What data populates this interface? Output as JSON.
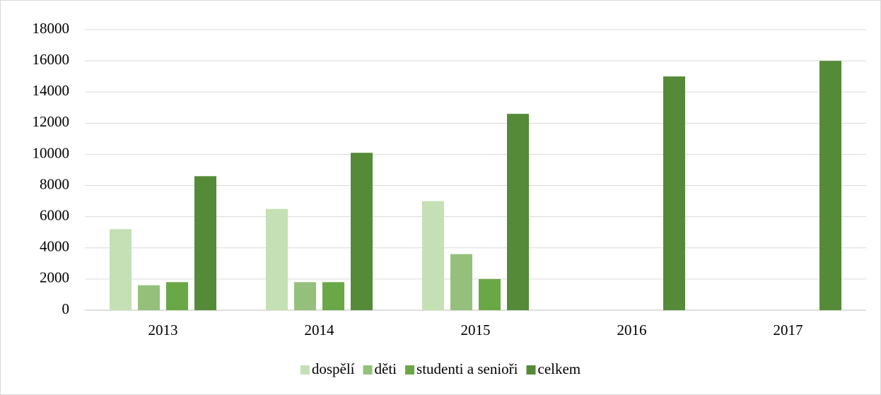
{
  "chart_data": {
    "type": "bar",
    "categories": [
      "2013",
      "2014",
      "2015",
      "2016",
      "2017"
    ],
    "series": [
      {
        "name": "dospělí",
        "color": "#c5e0b4",
        "values": [
          5200,
          6500,
          7000,
          null,
          null
        ]
      },
      {
        "name": "děti",
        "color": "#95c07c",
        "values": [
          1600,
          1800,
          3600,
          null,
          null
        ]
      },
      {
        "name": "studenti a senioři",
        "color": "#6aa746",
        "values": [
          1800,
          1800,
          2000,
          null,
          null
        ]
      },
      {
        "name": "celkem",
        "color": "#558a38",
        "values": [
          8600,
          10100,
          12600,
          15000,
          16000
        ]
      }
    ],
    "ylim": [
      0,
      18000
    ],
    "yticks": [
      0,
      2000,
      4000,
      6000,
      8000,
      10000,
      12000,
      14000,
      16000,
      18000
    ],
    "grid": true,
    "legend": "bottom"
  }
}
